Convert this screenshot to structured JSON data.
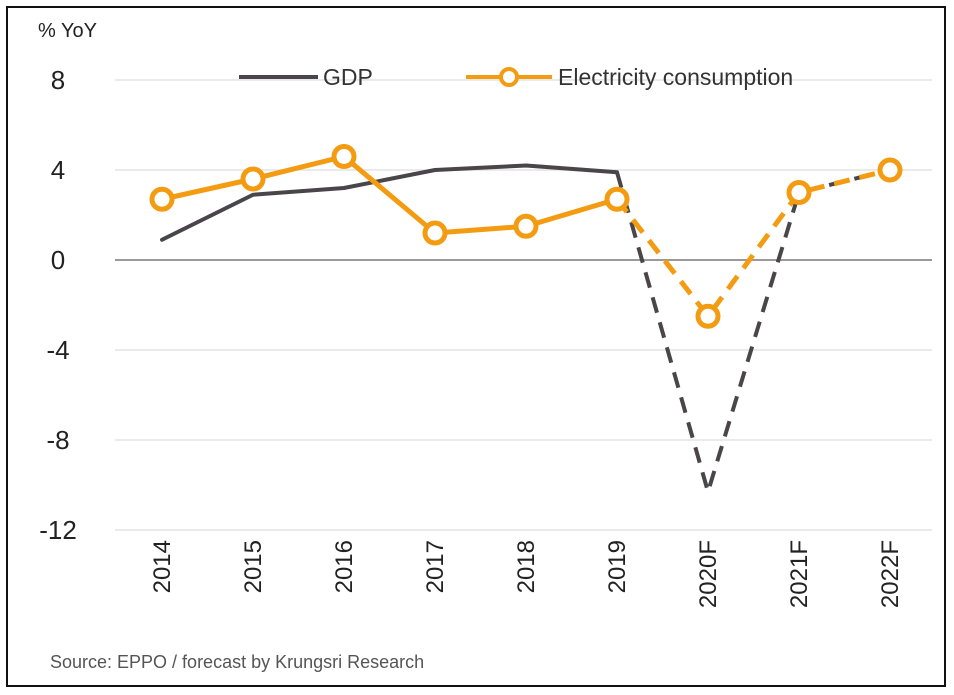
{
  "chart_data": {
    "type": "line",
    "ylabel": "% YoY",
    "ylim": [
      -12,
      8
    ],
    "yticks": [
      8,
      4,
      0,
      -4,
      -8,
      -12
    ],
    "categories": [
      "2014",
      "2015",
      "2016",
      "2017",
      "2018",
      "2019",
      "2020F",
      "2021F",
      "2022F"
    ],
    "forecast_start": "2019",
    "grid": true,
    "legend_position": "top",
    "series": [
      {
        "name": "GDP",
        "color": "#4a4548",
        "marker": "none",
        "values": [
          0.9,
          2.9,
          3.2,
          4.0,
          4.2,
          3.9,
          -10.3,
          3.0,
          4.0
        ]
      },
      {
        "name": "Electricity consumption",
        "color": "#f39c12",
        "marker": "circle",
        "values": [
          2.7,
          3.6,
          4.6,
          1.2,
          1.5,
          2.7,
          -2.5,
          3.0,
          4.0
        ]
      }
    ],
    "source": "Source: EPPO / forecast by Krungsri Research"
  }
}
